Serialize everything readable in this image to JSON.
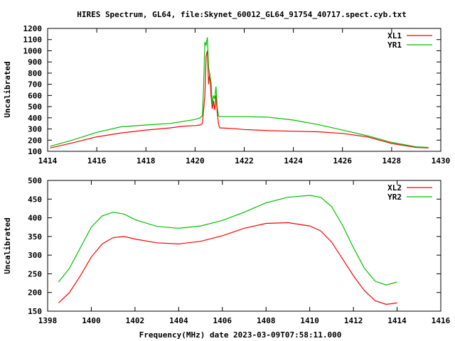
{
  "chart_data": [
    {
      "type": "line",
      "title": "HIRES Spectrum, GL64, file:Skynet_60012_GL64_91754_40717.spect.cyb.txt",
      "xlabel": "",
      "ylabel": "Uncalibrated",
      "xlim": [
        1414,
        1430
      ],
      "ylim": [
        100,
        1200
      ],
      "xticks": [
        1414,
        1416,
        1418,
        1420,
        1422,
        1424,
        1426,
        1428,
        1430
      ],
      "yticks": [
        100,
        200,
        300,
        400,
        500,
        600,
        700,
        800,
        900,
        1000,
        1100,
        1200
      ],
      "legend_position": "top-right",
      "series": [
        {
          "name": "XL1",
          "color": "#ff0000",
          "x": [
            1414.1,
            1415,
            1416,
            1417,
            1418,
            1419,
            1419.5,
            1420,
            1420.2,
            1420.3,
            1420.4,
            1420.45,
            1420.5,
            1420.55,
            1420.6,
            1420.65,
            1420.7,
            1420.75,
            1420.8,
            1420.85,
            1420.9,
            1420.95,
            1421,
            1421.5,
            1422,
            1423,
            1424,
            1425,
            1426,
            1427,
            1428,
            1429,
            1429.5
          ],
          "y": [
            130,
            175,
            230,
            265,
            290,
            310,
            325,
            330,
            335,
            350,
            600,
            950,
            1000,
            700,
            800,
            600,
            480,
            550,
            470,
            600,
            450,
            350,
            310,
            305,
            295,
            285,
            280,
            275,
            260,
            230,
            170,
            135,
            130
          ]
        },
        {
          "name": "YR1",
          "color": "#00c000",
          "x": [
            1414.1,
            1415,
            1416,
            1417,
            1418,
            1419,
            1420,
            1420.2,
            1420.3,
            1420.35,
            1420.4,
            1420.45,
            1420.5,
            1420.55,
            1420.6,
            1420.65,
            1420.7,
            1420.75,
            1420.8,
            1420.85,
            1420.9,
            1420.95,
            1421,
            1422,
            1423,
            1424,
            1425,
            1426,
            1427,
            1428,
            1429,
            1429.5
          ],
          "y": [
            145,
            200,
            270,
            320,
            335,
            350,
            385,
            400,
            420,
            700,
            1080,
            1050,
            1120,
            850,
            780,
            720,
            520,
            600,
            570,
            680,
            500,
            420,
            410,
            410,
            405,
            380,
            340,
            290,
            240,
            180,
            140,
            135
          ]
        }
      ]
    },
    {
      "type": "line",
      "title": "",
      "xlabel": "Frequency(MHz) date 2023-03-09T07:58:11.000",
      "ylabel": "Uncalibrated",
      "xlim": [
        1398,
        1416
      ],
      "ylim": [
        150,
        500
      ],
      "xticks": [
        1398,
        1400,
        1402,
        1404,
        1406,
        1408,
        1410,
        1412,
        1414,
        1416
      ],
      "yticks": [
        150,
        200,
        250,
        300,
        350,
        400,
        450,
        500
      ],
      "legend_position": "top-right",
      "series": [
        {
          "name": "XL2",
          "color": "#ff0000",
          "x": [
            1398.5,
            1399,
            1399.5,
            1400,
            1400.5,
            1401,
            1401.5,
            1402,
            1403,
            1404,
            1405,
            1406,
            1407,
            1408,
            1409,
            1410,
            1410.5,
            1411,
            1411.5,
            1412,
            1412.5,
            1413,
            1413.5,
            1414
          ],
          "y": [
            172,
            200,
            245,
            295,
            330,
            347,
            350,
            343,
            333,
            330,
            337,
            352,
            372,
            385,
            387,
            378,
            365,
            335,
            290,
            245,
            205,
            178,
            168,
            172
          ]
        },
        {
          "name": "YR2",
          "color": "#00c000",
          "x": [
            1398.5,
            1399,
            1399.5,
            1400,
            1400.5,
            1401,
            1401.5,
            1402,
            1403,
            1404,
            1405,
            1406,
            1407,
            1408,
            1409,
            1410,
            1410.5,
            1411,
            1411.5,
            1412,
            1412.5,
            1413,
            1413.5,
            1414
          ],
          "y": [
            228,
            265,
            320,
            375,
            405,
            415,
            410,
            395,
            377,
            372,
            378,
            393,
            415,
            440,
            455,
            460,
            455,
            430,
            380,
            320,
            265,
            230,
            220,
            228
          ]
        }
      ]
    }
  ]
}
